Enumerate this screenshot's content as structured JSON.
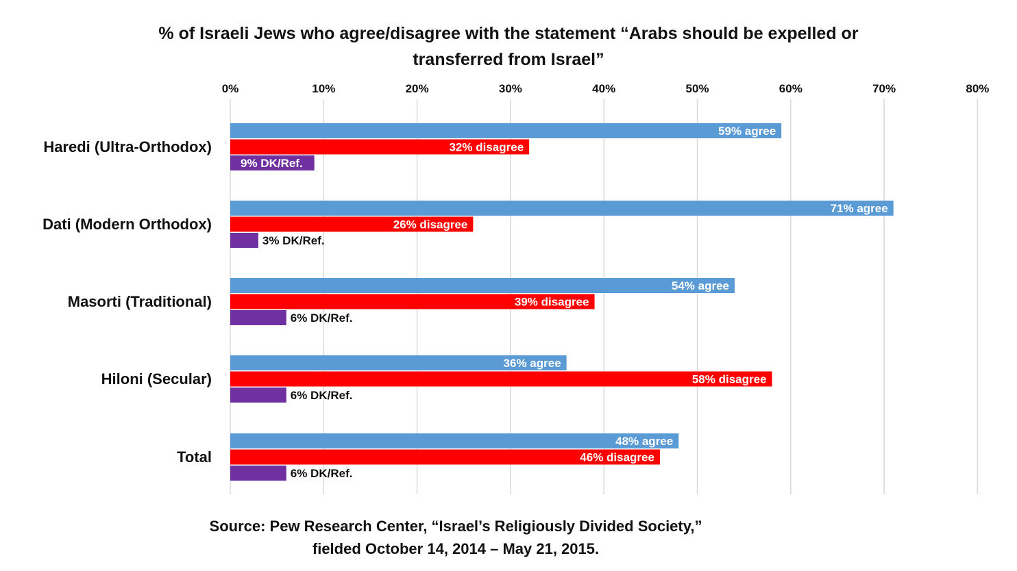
{
  "chart_data": {
    "type": "bar",
    "orientation": "horizontal",
    "title_lines": [
      "% of Israeli Jews who agree/disagree with the statement “Arabs should be expelled or",
      "transferred from Israel”"
    ],
    "source_lines": [
      "Source: Pew Research Center, “Israel’s Religiously Divided Society,”",
      "fielded October 14, 2014 – May 21, 2015."
    ],
    "categories": [
      "Haredi (Ultra-Orthodox)",
      "Dati (Modern Orthodox)",
      "Masorti (Traditional)",
      "Hiloni (Secular)",
      "Total"
    ],
    "series": [
      {
        "key": "agree",
        "color": "#5b9bd5",
        "label_color": "#ffffff",
        "values": [
          59,
          71,
          54,
          36,
          48
        ],
        "data_labels": [
          "59% agree",
          "71% agree",
          "54% agree",
          "36% agree",
          "48% agree"
        ]
      },
      {
        "key": "disagree",
        "color": "#ff0000",
        "label_color": "#ffffff",
        "values": [
          32,
          26,
          39,
          58,
          46
        ],
        "data_labels": [
          "32% disagree",
          "26% disagree",
          "39% disagree",
          "58% disagree",
          "46% disagree"
        ]
      },
      {
        "key": "dk_ref",
        "color": "#7030a0",
        "label_color": "#ffffff",
        "label_color_outside": "#111111",
        "values": [
          9,
          3,
          6,
          6,
          6
        ],
        "data_labels": [
          "9% DK/Ref.",
          "3% DK/Ref.",
          "6% DK/Ref.",
          "6% DK/Ref.",
          "6% DK/Ref."
        ]
      }
    ],
    "xlim": [
      0,
      80
    ],
    "xticks": [
      0,
      10,
      20,
      30,
      40,
      50,
      60,
      70,
      80
    ],
    "xtick_labels": [
      "0%",
      "10%",
      "20%",
      "30%",
      "40%",
      "50%",
      "60%",
      "70%",
      "80%"
    ],
    "x_axis_position": "top",
    "grid": true,
    "legend": "none"
  }
}
